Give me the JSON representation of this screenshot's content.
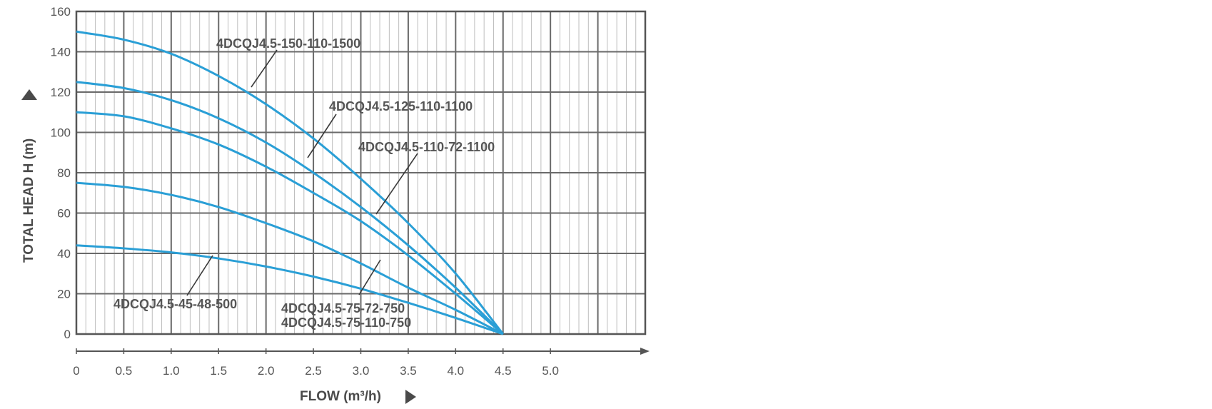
{
  "chart_data": {
    "type": "line",
    "xlabel": "FLOW (m³/h)",
    "ylabel": "TOTAL HEAD H (m)",
    "xlim": [
      0,
      5.0
    ],
    "ylim": [
      0,
      160
    ],
    "x_ticks": [
      "0",
      "0.5",
      "1.0",
      "1.5",
      "2.0",
      "2.5",
      "3.0",
      "3.5",
      "4.0",
      "4.5",
      "5.0"
    ],
    "y_ticks": [
      "0",
      "20",
      "40",
      "60",
      "80",
      "100",
      "120",
      "140",
      "160"
    ],
    "grid": true,
    "colors": {
      "curve": "#2a9fd6",
      "grid": "#6a6a6a",
      "minor_grid": "#bdbdbd"
    },
    "series": [
      {
        "name": "4DCQJ4.5-150-110-1500",
        "x": [
          0,
          0.5,
          1.0,
          1.5,
          2.0,
          2.5,
          3.0,
          3.5,
          4.0,
          4.5
        ],
        "y": [
          150,
          146,
          139,
          128,
          114,
          97,
          77,
          55,
          30,
          0
        ]
      },
      {
        "name": "4DCQJ4.5-125-110-1100",
        "x": [
          0,
          0.5,
          1.0,
          1.5,
          2.0,
          2.5,
          3.0,
          3.5,
          4.0,
          4.5
        ],
        "y": [
          125,
          122,
          116,
          107,
          95,
          80,
          63,
          44,
          23,
          0
        ]
      },
      {
        "name": "4DCQJ4.5-110-72-1100",
        "x": [
          0,
          0.5,
          1.0,
          1.5,
          2.0,
          2.5,
          3.0,
          3.5,
          4.0,
          4.5
        ],
        "y": [
          110,
          108,
          102,
          94,
          83,
          70,
          56,
          39,
          20,
          0
        ]
      },
      {
        "name": "4DCQJ4.5-75-72-750",
        "x": [
          0,
          0.5,
          1.0,
          1.5,
          2.0,
          2.5,
          3.0,
          3.5,
          4.0,
          4.5
        ],
        "y": [
          75,
          73,
          69,
          63,
          55,
          46,
          35,
          23,
          12,
          0
        ]
      },
      {
        "name": "4DCQJ4.5-75-110-750",
        "x": [
          0,
          0.5,
          1.0,
          1.5,
          2.0,
          2.5,
          3.0,
          3.5,
          4.0,
          4.5
        ],
        "y": [
          75,
          73,
          69,
          63,
          55,
          46,
          35,
          23,
          12,
          0
        ]
      },
      {
        "name": "4DCQJ4.5-45-48-500",
        "x": [
          0,
          0.5,
          1.0,
          1.5,
          2.0,
          2.5,
          3.0,
          3.5,
          4.0,
          4.5
        ],
        "y": [
          44,
          42.5,
          40.5,
          37.5,
          33.5,
          28.5,
          22.5,
          15.5,
          8,
          0
        ]
      }
    ]
  }
}
